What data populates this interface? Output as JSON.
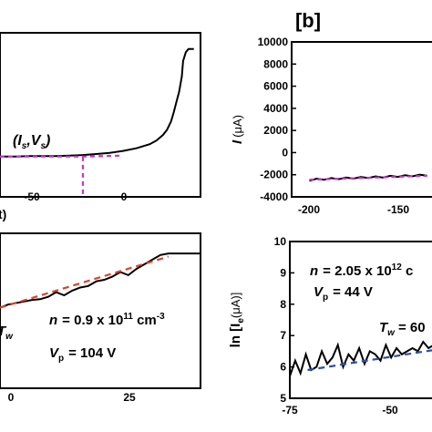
{
  "panel_label": "[b]",
  "chart_data": [
    {
      "id": "top-left",
      "type": "line",
      "x_ticks": [
        "-50",
        "0"
      ],
      "xlabel_fragment": "t)",
      "xlim": [
        -112,
        38
      ],
      "ylim": [
        -0.25,
        2.2
      ],
      "annotation": {
        "text_I": "(I",
        "sub_s1": "s",
        "comma_V": ",V",
        "sub_s2": "s",
        "close": ")",
        "x": -50,
        "y": 0
      },
      "series": [
        {
          "style": "black-solid",
          "x": [
            -112,
            -100,
            -90,
            -80,
            -70,
            -60,
            -50,
            -40,
            -30,
            -20,
            -10,
            0,
            5,
            10,
            13,
            16,
            18,
            20,
            22,
            24,
            25,
            27,
            29,
            31,
            33
          ],
          "y": [
            0,
            0,
            0.01,
            0.01,
            0.01,
            0.02,
            0.03,
            0.05,
            0.07,
            0.11,
            0.16,
            0.24,
            0.31,
            0.42,
            0.52,
            0.68,
            0.86,
            1.06,
            1.25,
            1.55,
            1.85,
            2.02,
            2.08,
            2.08,
            2.08
          ]
        },
        {
          "style": "magenta-dashed",
          "x": [
            -112,
            -50,
            -20
          ],
          "y": [
            0,
            0,
            0.02
          ]
        }
      ]
    },
    {
      "id": "top-right",
      "type": "line",
      "x_ticks": [
        "-200",
        "-150"
      ],
      "y_ticks": [
        "10000",
        "8000",
        "6000",
        "4000",
        "2000",
        "0",
        "-2000",
        "-4000"
      ],
      "ylabel": "I",
      "ylabel_unit": "(μA)",
      "xlim": [
        -212,
        -113
      ],
      "ylim": [
        -4000,
        10000
      ],
      "series": [
        {
          "style": "black-solid",
          "x": [
            -200,
            -195,
            -190,
            -185,
            -180,
            -175,
            -170,
            -165,
            -160,
            -155,
            -150,
            -145,
            -140,
            -135,
            -130,
            -125,
            -120
          ],
          "y": [
            -2550,
            -2350,
            -2450,
            -2300,
            -2400,
            -2250,
            -2350,
            -2200,
            -2300,
            -2150,
            -2250,
            -2100,
            -2200,
            -2050,
            -2150,
            -2000,
            -2100
          ]
        },
        {
          "style": "magenta-dashed",
          "x": [
            -200,
            -120
          ],
          "y": [
            -2450,
            -2100
          ]
        }
      ]
    },
    {
      "id": "bottom-left",
      "type": "line",
      "x_ticks": [
        "0",
        "25"
      ],
      "xlim": [
        -12,
        38
      ],
      "ylim": [
        0,
        10
      ],
      "text_n": "n",
      "text_n_val": "= 0.9 x 10",
      "text_n_exp": "11",
      "text_n_unit": " cm",
      "text_n_unit_exp": "-3",
      "text_V": "V",
      "text_V_sub": "p",
      "text_V_val": "= 104 V",
      "text_T_fragment": "T",
      "text_T_sub_fragment": "w",
      "series": [
        {
          "style": "black-solid",
          "x": [
            -12,
            -10,
            -8,
            -6,
            -4,
            -2,
            0,
            2,
            4,
            6,
            8,
            10,
            12,
            14,
            16,
            18,
            20,
            22,
            24,
            26,
            28,
            30,
            34,
            38
          ],
          "y": [
            5.2,
            5.4,
            5.5,
            5.6,
            5.7,
            5.75,
            5.9,
            6.2,
            6.0,
            6.3,
            6.5,
            6.6,
            6.9,
            7.0,
            7.2,
            7.5,
            7.3,
            7.7,
            8.0,
            8.3,
            8.6,
            8.7,
            8.7,
            8.7
          ]
        },
        {
          "style": "red-dashed",
          "x": [
            -12,
            30
          ],
          "y": [
            5.2,
            8.5
          ]
        }
      ]
    },
    {
      "id": "bottom-right",
      "type": "line",
      "x_ticks": [
        "-75",
        "-50"
      ],
      "y_ticks": [
        "10",
        "9",
        "8",
        "7",
        "6",
        "5"
      ],
      "ylabel": "ln [I",
      "ylabel_sub": "e",
      "ylabel_unit": "(μA)]",
      "xlim": [
        -75,
        -34
      ],
      "ylim": [
        5,
        10
      ],
      "text_n": "n",
      "text_n_val": "= 2.05 x 10",
      "text_n_exp": "12",
      "text_n_unit": " c",
      "text_V": "V",
      "text_V_sub": "p",
      "text_V_val": "= 44 V",
      "text_T": "T",
      "text_T_sub": "w",
      "text_T_val": "= 60",
      "series": [
        {
          "style": "black-solid",
          "x": [
            -75,
            -73.5,
            -72,
            -70.5,
            -69,
            -67.5,
            -66,
            -64.5,
            -63,
            -61.5,
            -60,
            -58.5,
            -57,
            -55.5,
            -54,
            -52.5,
            -51,
            -49.5,
            -48,
            -46.5,
            -45,
            -43.5,
            -42,
            -40.5,
            -39,
            -37.5,
            -36,
            -34.5
          ],
          "y": [
            5.7,
            6.2,
            5.8,
            6.4,
            5.9,
            6.0,
            6.5,
            6.1,
            6.3,
            6.7,
            6.0,
            6.4,
            6.2,
            6.6,
            6.1,
            6.5,
            6.4,
            6.2,
            6.7,
            6.3,
            6.6,
            6.4,
            6.5,
            6.6,
            6.5,
            6.8,
            6.6,
            6.7
          ]
        },
        {
          "style": "blue-dashed",
          "x": [
            -70,
            -34
          ],
          "y": [
            5.9,
            6.55
          ]
        }
      ]
    }
  ]
}
